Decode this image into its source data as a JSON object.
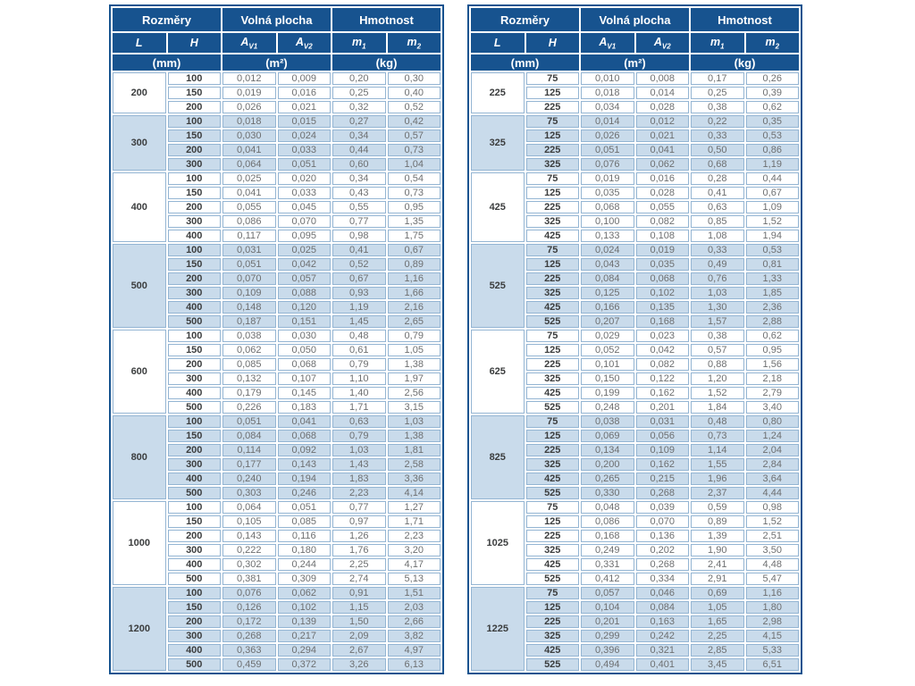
{
  "header": {
    "dims": "Rozměry",
    "free_area": "Volná plocha",
    "weight": "Hmotnost",
    "L": "L",
    "H": "H",
    "A": "A",
    "v1": "V1",
    "v2": "V2",
    "m": "m",
    "m1_sub": "1",
    "m2_sub": "2",
    "unit_mm": "(mm)",
    "unit_m2": "(m²)",
    "unit_kg": "(kg)"
  },
  "colors": {
    "header_bg": "#17538f",
    "stripe_bg": "#c9dbeb",
    "cell_border": "#94b5d3",
    "label_text": "#3b3d3e",
    "value_text": "#6d6f71"
  },
  "tables": [
    {
      "groups": [
        {
          "L": "200",
          "rows": [
            [
              "100",
              "0,012",
              "0,009",
              "0,20",
              "0,30"
            ],
            [
              "150",
              "0,019",
              "0,016",
              "0,25",
              "0,40"
            ],
            [
              "200",
              "0,026",
              "0,021",
              "0,32",
              "0,52"
            ]
          ]
        },
        {
          "L": "300",
          "rows": [
            [
              "100",
              "0,018",
              "0,015",
              "0,27",
              "0,42"
            ],
            [
              "150",
              "0,030",
              "0,024",
              "0,34",
              "0,57"
            ],
            [
              "200",
              "0,041",
              "0,033",
              "0,44",
              "0,73"
            ],
            [
              "300",
              "0,064",
              "0,051",
              "0,60",
              "1,04"
            ]
          ]
        },
        {
          "L": "400",
          "rows": [
            [
              "100",
              "0,025",
              "0,020",
              "0,34",
              "0,54"
            ],
            [
              "150",
              "0,041",
              "0,033",
              "0,43",
              "0,73"
            ],
            [
              "200",
              "0,055",
              "0,045",
              "0,55",
              "0,95"
            ],
            [
              "300",
              "0,086",
              "0,070",
              "0,77",
              "1,35"
            ],
            [
              "400",
              "0,117",
              "0,095",
              "0,98",
              "1,75"
            ]
          ]
        },
        {
          "L": "500",
          "rows": [
            [
              "100",
              "0,031",
              "0,025",
              "0,41",
              "0,67"
            ],
            [
              "150",
              "0,051",
              "0,042",
              "0,52",
              "0,89"
            ],
            [
              "200",
              "0,070",
              "0,057",
              "0,67",
              "1,16"
            ],
            [
              "300",
              "0,109",
              "0,088",
              "0,93",
              "1,66"
            ],
            [
              "400",
              "0,148",
              "0,120",
              "1,19",
              "2,16"
            ],
            [
              "500",
              "0,187",
              "0,151",
              "1,45",
              "2,65"
            ]
          ]
        },
        {
          "L": "600",
          "rows": [
            [
              "100",
              "0,038",
              "0,030",
              "0,48",
              "0,79"
            ],
            [
              "150",
              "0,062",
              "0,050",
              "0,61",
              "1,05"
            ],
            [
              "200",
              "0,085",
              "0,068",
              "0,79",
              "1,38"
            ],
            [
              "300",
              "0,132",
              "0,107",
              "1,10",
              "1,97"
            ],
            [
              "400",
              "0,179",
              "0,145",
              "1,40",
              "2,56"
            ],
            [
              "500",
              "0,226",
              "0,183",
              "1,71",
              "3,15"
            ]
          ]
        },
        {
          "L": "800",
          "rows": [
            [
              "100",
              "0,051",
              "0,041",
              "0,63",
              "1,03"
            ],
            [
              "150",
              "0,084",
              "0,068",
              "0,79",
              "1,38"
            ],
            [
              "200",
              "0,114",
              "0,092",
              "1,03",
              "1,81"
            ],
            [
              "300",
              "0,177",
              "0,143",
              "1,43",
              "2,58"
            ],
            [
              "400",
              "0,240",
              "0,194",
              "1,83",
              "3,36"
            ],
            [
              "500",
              "0,303",
              "0,246",
              "2,23",
              "4,14"
            ]
          ]
        },
        {
          "L": "1000",
          "rows": [
            [
              "100",
              "0,064",
              "0,051",
              "0,77",
              "1,27"
            ],
            [
              "150",
              "0,105",
              "0,085",
              "0,97",
              "1,71"
            ],
            [
              "200",
              "0,143",
              "0,116",
              "1,26",
              "2,23"
            ],
            [
              "300",
              "0,222",
              "0,180",
              "1,76",
              "3,20"
            ],
            [
              "400",
              "0,302",
              "0,244",
              "2,25",
              "4,17"
            ],
            [
              "500",
              "0,381",
              "0,309",
              "2,74",
              "5,13"
            ]
          ]
        },
        {
          "L": "1200",
          "rows": [
            [
              "100",
              "0,076",
              "0,062",
              "0,91",
              "1,51"
            ],
            [
              "150",
              "0,126",
              "0,102",
              "1,15",
              "2,03"
            ],
            [
              "200",
              "0,172",
              "0,139",
              "1,50",
              "2,66"
            ],
            [
              "300",
              "0,268",
              "0,217",
              "2,09",
              "3,82"
            ],
            [
              "400",
              "0,363",
              "0,294",
              "2,67",
              "4,97"
            ],
            [
              "500",
              "0,459",
              "0,372",
              "3,26",
              "6,13"
            ]
          ]
        }
      ]
    },
    {
      "groups": [
        {
          "L": "225",
          "rows": [
            [
              "75",
              "0,010",
              "0,008",
              "0,17",
              "0,26"
            ],
            [
              "125",
              "0,018",
              "0,014",
              "0,25",
              "0,39"
            ],
            [
              "225",
              "0,034",
              "0,028",
              "0,38",
              "0,62"
            ]
          ]
        },
        {
          "L": "325",
          "rows": [
            [
              "75",
              "0,014",
              "0,012",
              "0,22",
              "0,35"
            ],
            [
              "125",
              "0,026",
              "0,021",
              "0,33",
              "0,53"
            ],
            [
              "225",
              "0,051",
              "0,041",
              "0,50",
              "0,86"
            ],
            [
              "325",
              "0,076",
              "0,062",
              "0,68",
              "1,19"
            ]
          ]
        },
        {
          "L": "425",
          "rows": [
            [
              "75",
              "0,019",
              "0,016",
              "0,28",
              "0,44"
            ],
            [
              "125",
              "0,035",
              "0,028",
              "0,41",
              "0,67"
            ],
            [
              "225",
              "0,068",
              "0,055",
              "0,63",
              "1,09"
            ],
            [
              "325",
              "0,100",
              "0,082",
              "0,85",
              "1,52"
            ],
            [
              "425",
              "0,133",
              "0,108",
              "1,08",
              "1,94"
            ]
          ]
        },
        {
          "L": "525",
          "rows": [
            [
              "75",
              "0,024",
              "0,019",
              "0,33",
              "0,53"
            ],
            [
              "125",
              "0,043",
              "0,035",
              "0,49",
              "0,81"
            ],
            [
              "225",
              "0,084",
              "0,068",
              "0,76",
              "1,33"
            ],
            [
              "325",
              "0,125",
              "0,102",
              "1,03",
              "1,85"
            ],
            [
              "425",
              "0,166",
              "0,135",
              "1,30",
              "2,36"
            ],
            [
              "525",
              "0,207",
              "0,168",
              "1,57",
              "2,88"
            ]
          ]
        },
        {
          "L": "625",
          "rows": [
            [
              "75",
              "0,029",
              "0,023",
              "0,38",
              "0,62"
            ],
            [
              "125",
              "0,052",
              "0,042",
              "0,57",
              "0,95"
            ],
            [
              "225",
              "0,101",
              "0,082",
              "0,88",
              "1,56"
            ],
            [
              "325",
              "0,150",
              "0,122",
              "1,20",
              "2,18"
            ],
            [
              "425",
              "0,199",
              "0,162",
              "1,52",
              "2,79"
            ],
            [
              "525",
              "0,248",
              "0,201",
              "1,84",
              "3,40"
            ]
          ]
        },
        {
          "L": "825",
          "rows": [
            [
              "75",
              "0,038",
              "0,031",
              "0,48",
              "0,80"
            ],
            [
              "125",
              "0,069",
              "0,056",
              "0,73",
              "1,24"
            ],
            [
              "225",
              "0,134",
              "0,109",
              "1,14",
              "2,04"
            ],
            [
              "325",
              "0,200",
              "0,162",
              "1,55",
              "2,84"
            ],
            [
              "425",
              "0,265",
              "0,215",
              "1,96",
              "3,64"
            ],
            [
              "525",
              "0,330",
              "0,268",
              "2,37",
              "4,44"
            ]
          ]
        },
        {
          "L": "1025",
          "rows": [
            [
              "75",
              "0,048",
              "0,039",
              "0,59",
              "0,98"
            ],
            [
              "125",
              "0,086",
              "0,070",
              "0,89",
              "1,52"
            ],
            [
              "225",
              "0,168",
              "0,136",
              "1,39",
              "2,51"
            ],
            [
              "325",
              "0,249",
              "0,202",
              "1,90",
              "3,50"
            ],
            [
              "425",
              "0,331",
              "0,268",
              "2,41",
              "4,48"
            ],
            [
              "525",
              "0,412",
              "0,334",
              "2,91",
              "5,47"
            ]
          ]
        },
        {
          "L": "1225",
          "rows": [
            [
              "75",
              "0,057",
              "0,046",
              "0,69",
              "1,16"
            ],
            [
              "125",
              "0,104",
              "0,084",
              "1,05",
              "1,80"
            ],
            [
              "225",
              "0,201",
              "0,163",
              "1,65",
              "2,98"
            ],
            [
              "325",
              "0,299",
              "0,242",
              "2,25",
              "4,15"
            ],
            [
              "425",
              "0,396",
              "0,321",
              "2,85",
              "5,33"
            ],
            [
              "525",
              "0,494",
              "0,401",
              "3,45",
              "6,51"
            ]
          ]
        }
      ]
    }
  ]
}
